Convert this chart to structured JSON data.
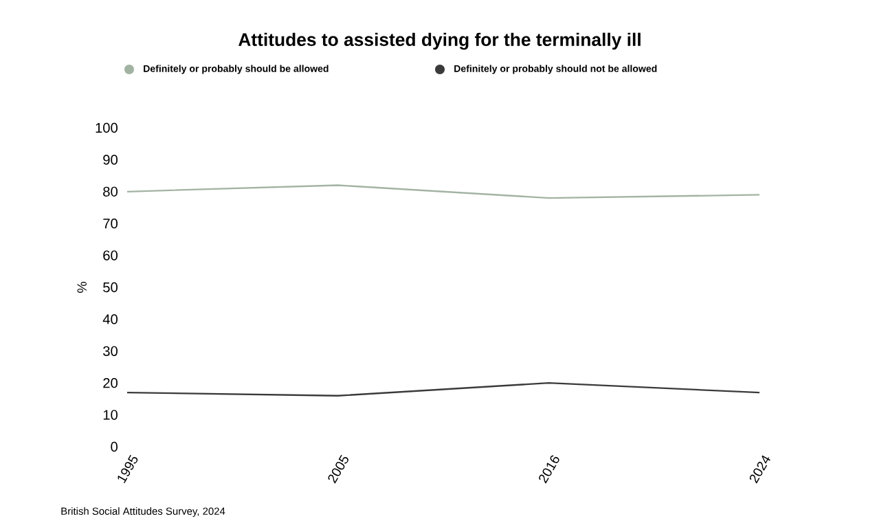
{
  "chart_data": {
    "type": "line",
    "title": "Attitudes to assisted dying for the terminally ill",
    "ylabel": "%",
    "categories": [
      "1995",
      "2005",
      "2016",
      "2024"
    ],
    "series": [
      {
        "name": "Definitely or probably should be allowed",
        "color": "#a3b3a3",
        "values": [
          80,
          82,
          78,
          79
        ]
      },
      {
        "name": "Definitely or probably should not be allowed",
        "color": "#3a3a3a",
        "values": [
          17,
          16,
          20,
          17
        ]
      }
    ],
    "ylim": [
      0,
      100
    ],
    "yticks": [
      0,
      10,
      20,
      30,
      40,
      50,
      60,
      70,
      80,
      90,
      100
    ],
    "grid": false,
    "legend": "top",
    "marker": "none",
    "line_style": "solid",
    "annotations": [
      "British Social Attitudes Survey, 2024"
    ]
  }
}
